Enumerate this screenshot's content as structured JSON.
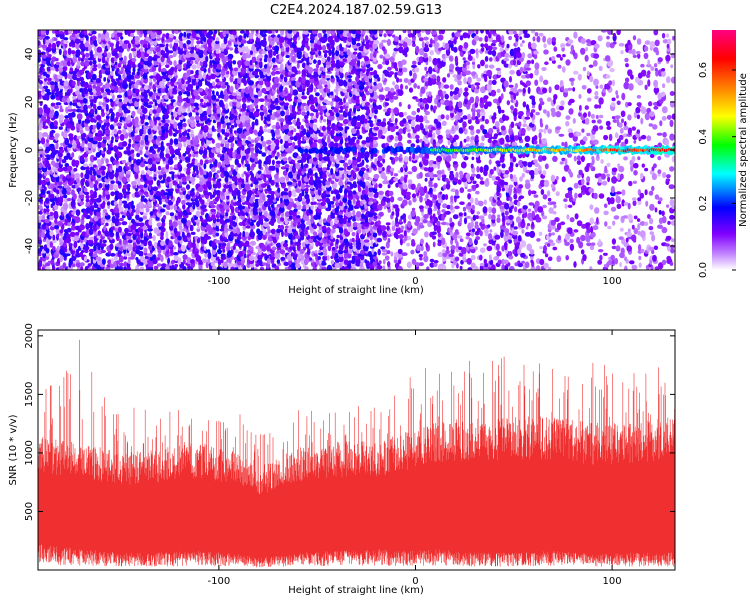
{
  "title": "C2E4.2024.187.02.59.G13",
  "chart_data": [
    {
      "type": "heatmap",
      "xlabel": "Height of straight line (km)",
      "ylabel": "Frequency (Hz)",
      "xlim": [
        -192,
        132
      ],
      "ylim": [
        -50,
        50
      ],
      "xticks": [
        -100,
        0,
        100
      ],
      "yticks": [
        -40,
        -20,
        0,
        20,
        40
      ],
      "colorbar": {
        "label": "Normalized spectral amplitude",
        "range": [
          0.0,
          0.72
        ],
        "ticks": [
          0.0,
          0.2,
          0.4,
          0.6
        ],
        "colors": [
          "#ffffff",
          "#8000ff",
          "#0000ff",
          "#00ffff",
          "#00ff00",
          "#ffff00",
          "#ff8000",
          "#ff0000",
          "#ff0080"
        ]
      },
      "signal_line": {
        "frequency": 0,
        "start_height": -60,
        "end_height": 132,
        "description": "narrow horizontal ridge near 0 Hz strengthening with height"
      },
      "background_density": [
        {
          "x_from": -192,
          "x_to": -20,
          "level": "dense"
        },
        {
          "x_from": -20,
          "x_to": 60,
          "level": "moderate"
        },
        {
          "x_from": 60,
          "x_to": 132,
          "level": "sparse"
        }
      ]
    },
    {
      "type": "line",
      "xlabel": "Height of straight line (km)",
      "ylabel": "SNR (10 * v/v)",
      "xlim": [
        -192,
        132
      ],
      "ylim": [
        0,
        2050
      ],
      "xticks": [
        -100,
        0,
        100
      ],
      "yticks": [
        500,
        1000,
        1500,
        2000
      ],
      "color": "#f03030",
      "envelope": {
        "x": [
          -192,
          -170,
          -150,
          -130,
          -110,
          -90,
          -80,
          -60,
          -40,
          -20,
          0,
          10,
          30,
          50,
          70,
          90,
          110,
          132
        ],
        "typical_min": [
          150,
          120,
          100,
          100,
          110,
          100,
          70,
          100,
          110,
          120,
          110,
          120,
          100,
          100,
          110,
          90,
          100,
          100
        ],
        "typical_max": [
          1100,
          1050,
          950,
          1000,
          1050,
          950,
          850,
          1000,
          1050,
          1050,
          1150,
          1200,
          1250,
          1250,
          1250,
          1200,
          1200,
          1250
        ],
        "peak": [
          1450,
          1900,
          1350,
          1300,
          1350,
          1300,
          1150,
          1400,
          1350,
          1400,
          1600,
          1700,
          1900,
          1800,
          1750,
          1700,
          1650,
          1800
        ]
      }
    }
  ]
}
